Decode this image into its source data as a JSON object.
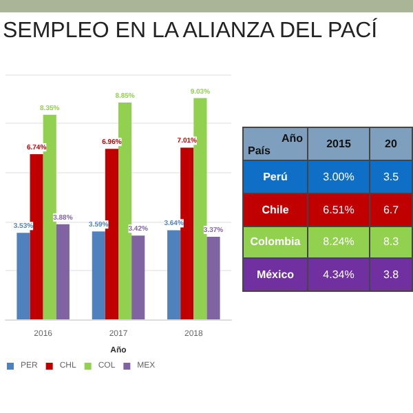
{
  "chart_data": [
    {
      "type": "bar",
      "title": "SEMPLEO EN LA ALIANZA DEL PACÍ",
      "xlabel": "Año",
      "categories": [
        "2016",
        "2017",
        "2018"
      ],
      "series": [
        {
          "name": "PER",
          "color": "#4f81bd",
          "values": [
            3.53,
            3.59,
            3.64
          ],
          "value_labels": [
            "3.53%",
            "3.59%",
            "3.64%"
          ]
        },
        {
          "name": "CHL",
          "color": "#c00000",
          "values": [
            6.74,
            6.96,
            7.01
          ],
          "value_labels": [
            "6.74%",
            "6.96%",
            "7.01%"
          ]
        },
        {
          "name": "COL",
          "color": "#92d050",
          "values": [
            8.35,
            8.85,
            9.03
          ],
          "value_labels": [
            "8.35%",
            "8.85%",
            "9.03%"
          ]
        },
        {
          "name": "MEX",
          "color": "#8064a2",
          "values": [
            3.88,
            3.42,
            3.37
          ],
          "value_labels": [
            "3.88%",
            "3.42%",
            "3.37%"
          ]
        }
      ],
      "grid": "y",
      "legend": "bottom left",
      "tick_labels": "x"
    },
    {
      "type": "other",
      "annotations": [
        "Año",
        "País",
        "2015",
        "20",
        "Perú",
        "3.00%",
        "3.5",
        "Chile",
        "6.51%",
        "6.7",
        "Colombia",
        "8.24%",
        "8.3",
        "México",
        "4.34%",
        "3.8"
      ]
    }
  ]
}
